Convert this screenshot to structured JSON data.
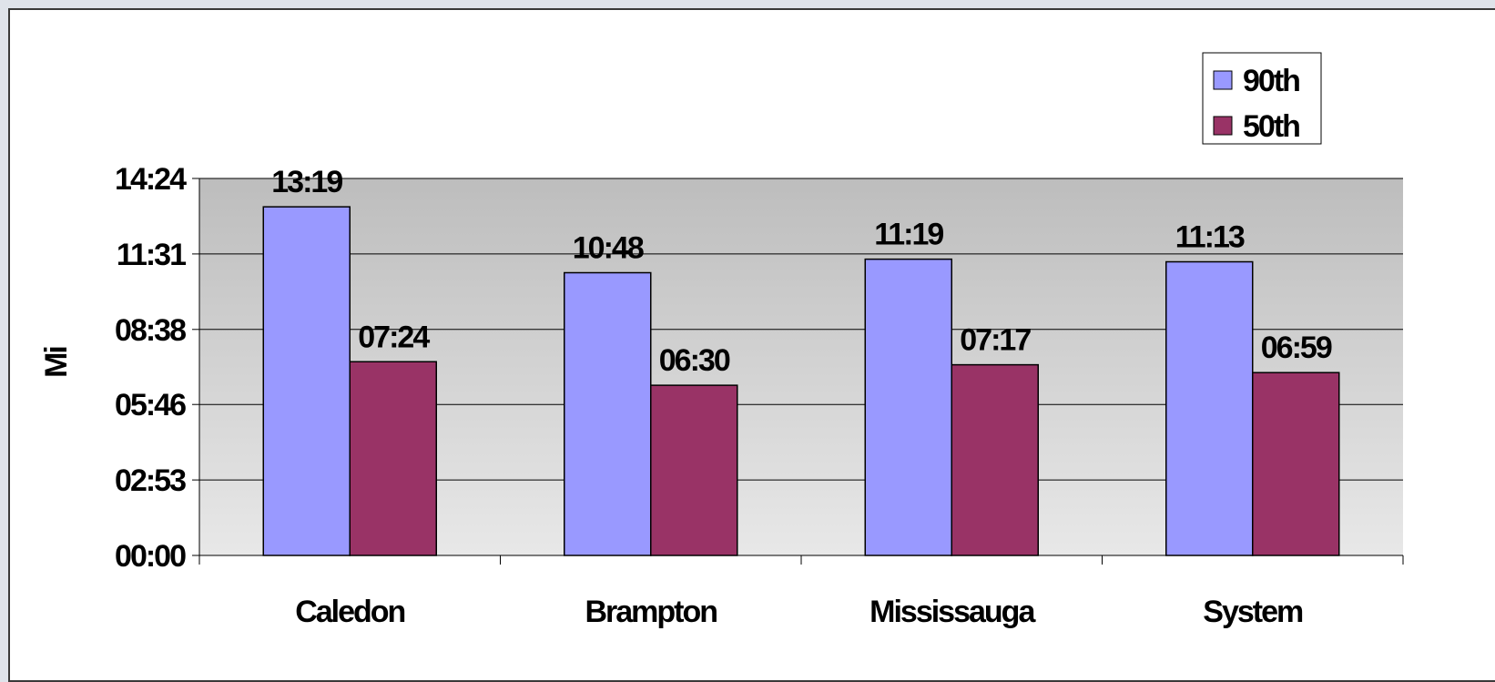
{
  "chart_data": {
    "type": "bar",
    "title": "",
    "xlabel": "",
    "ylabel": "Mi",
    "categories": [
      "Caledon",
      "Brampton",
      "Mississauga",
      "System"
    ],
    "series": [
      {
        "name": "90th",
        "color": "#9999ff",
        "values": [
          799,
          648,
          679,
          673
        ],
        "labels": [
          "13:19",
          "10:48",
          "11:19",
          "11:13"
        ]
      },
      {
        "name": "50th",
        "color": "#993366",
        "values": [
          444,
          390,
          437,
          419
        ],
        "labels": [
          "07:24",
          "06:30",
          "07:17",
          "06:59"
        ]
      }
    ],
    "yticks": [
      {
        "value": 0,
        "label": "00:00"
      },
      {
        "value": 173,
        "label": "02:53"
      },
      {
        "value": 346,
        "label": "05:46"
      },
      {
        "value": 518,
        "label": "08:38"
      },
      {
        "value": 691,
        "label": "11:31"
      },
      {
        "value": 864,
        "label": "14:24"
      }
    ],
    "ylim": [
      0,
      864
    ],
    "grid": true,
    "legend_position": "top-right",
    "plot_background": "gray-gradient"
  }
}
